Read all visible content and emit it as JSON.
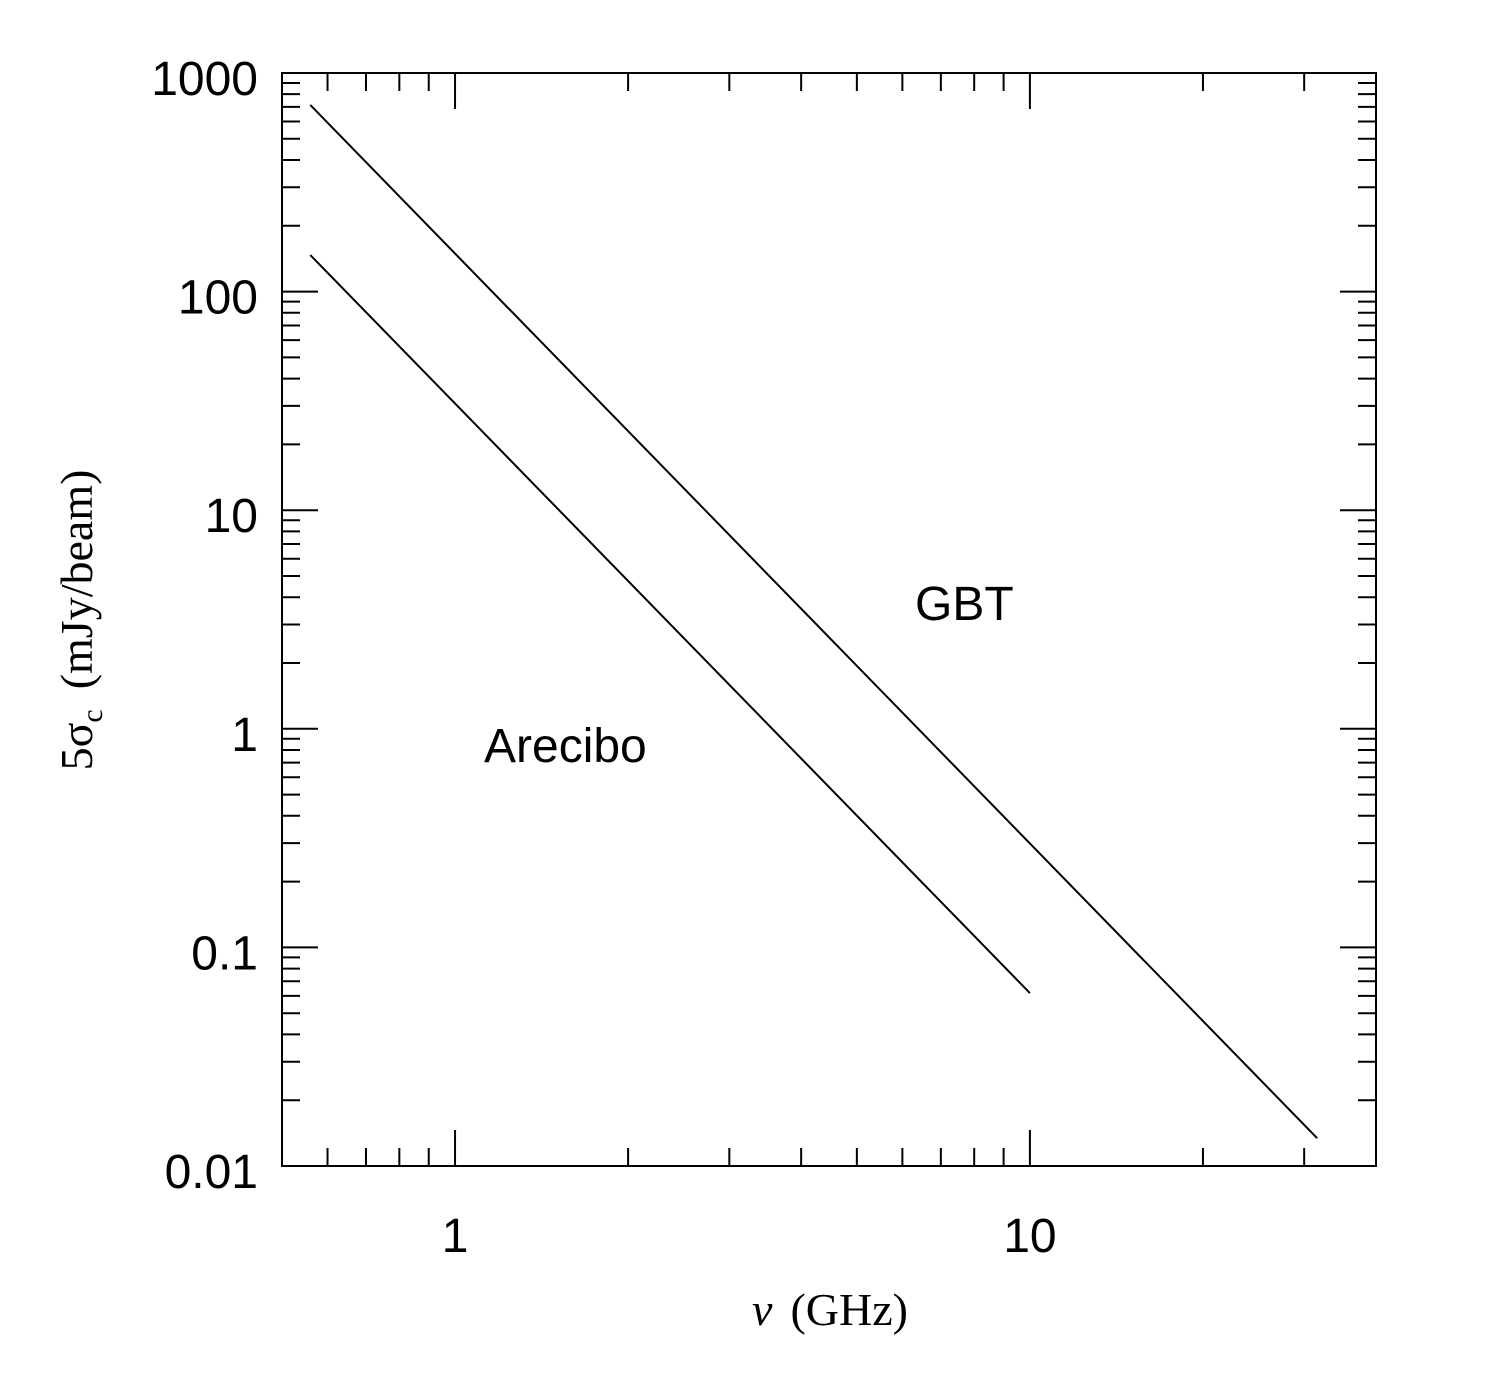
{
  "chart_data": {
    "type": "line",
    "xlabel": [
      "ν",
      "(GHz)"
    ],
    "ylabel": [
      "5σ",
      "c",
      "(mJy/beam)"
    ],
    "xscale": "log",
    "yscale": "log",
    "xlim": [
      0.5,
      40
    ],
    "ylim": [
      0.01,
      1000
    ],
    "xticks": [
      1,
      10
    ],
    "xminorticks": [
      0.6,
      0.7,
      0.8,
      0.9,
      2,
      3,
      4,
      5,
      6,
      7,
      8,
      9,
      20,
      30
    ],
    "yticks": [
      0.01,
      0.1,
      1,
      10,
      100,
      1000
    ],
    "yminorticks": [
      0.02,
      0.03,
      0.04,
      0.05,
      0.06,
      0.07,
      0.08,
      0.09,
      0.2,
      0.3,
      0.4,
      0.5,
      0.6,
      0.7,
      0.8,
      0.9,
      2,
      3,
      4,
      5,
      6,
      7,
      8,
      9,
      20,
      30,
      40,
      50,
      60,
      70,
      80,
      90,
      200,
      300,
      400,
      500,
      600,
      700,
      800,
      900
    ],
    "series": [
      {
        "name": "GBT",
        "color": "#000000",
        "x": [
          0.56,
          31.6
        ],
        "values": [
          714,
          0.0134
        ]
      },
      {
        "name": "Arecibo",
        "color": "#000000",
        "x": [
          0.56,
          10
        ],
        "values": [
          147,
          0.0618
        ]
      }
    ]
  }
}
